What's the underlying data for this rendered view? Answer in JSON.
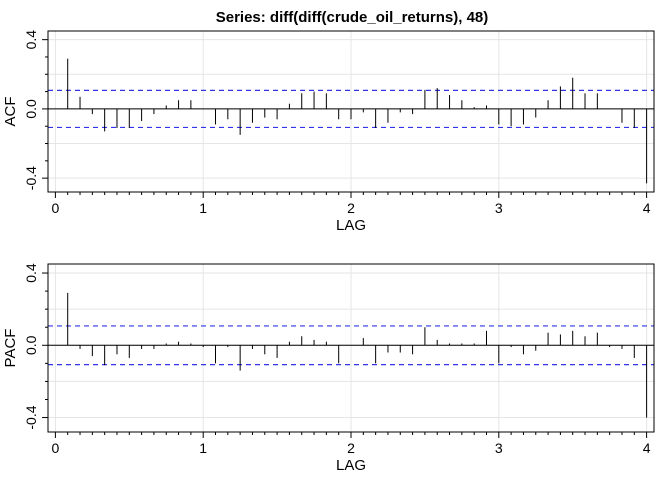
{
  "title": "Series:  diff(diff(crude_oil_returns), 48)",
  "chart_data": [
    {
      "type": "bar",
      "panel": "acf",
      "xlabel": "LAG",
      "ylabel": "ACF",
      "xlim": [
        -0.05,
        4.05
      ],
      "ylim": [
        -0.48,
        0.45
      ],
      "xticks": [
        0,
        1,
        2,
        3,
        4
      ],
      "yticks": [
        -0.4,
        0.0,
        0.4
      ],
      "ytick_labels": [
        "-0.4",
        "0.0",
        "0.4"
      ],
      "grid": true,
      "ci": [
        0.107,
        -0.107
      ],
      "lags": [
        0.0833,
        0.1667,
        0.25,
        0.3333,
        0.4167,
        0.5,
        0.5833,
        0.6667,
        0.75,
        0.8333,
        0.9167,
        1.0,
        1.0833,
        1.1667,
        1.25,
        1.3333,
        1.4167,
        1.5,
        1.5833,
        1.6667,
        1.75,
        1.8333,
        1.9167,
        2.0,
        2.0833,
        2.1667,
        2.25,
        2.3333,
        2.4167,
        2.5,
        2.5833,
        2.6667,
        2.75,
        2.8333,
        2.9167,
        3.0,
        3.0833,
        3.1667,
        3.25,
        3.3333,
        3.4167,
        3.5,
        3.5833,
        3.6667,
        3.75,
        3.8333,
        3.9167,
        4.0
      ],
      "values": [
        0.29,
        0.07,
        -0.03,
        -0.13,
        -0.11,
        -0.11,
        -0.07,
        -0.03,
        0.02,
        0.05,
        0.05,
        0.0,
        -0.09,
        -0.06,
        -0.15,
        -0.08,
        -0.05,
        -0.06,
        0.03,
        0.09,
        0.1,
        0.09,
        -0.06,
        -0.06,
        -0.02,
        -0.11,
        -0.08,
        -0.02,
        -0.03,
        0.11,
        0.12,
        0.08,
        0.05,
        0.01,
        0.02,
        -0.09,
        -0.1,
        -0.09,
        -0.05,
        0.05,
        0.13,
        0.18,
        0.09,
        0.09,
        0.0,
        -0.08,
        -0.11,
        -0.43
      ]
    },
    {
      "type": "bar",
      "panel": "pacf",
      "xlabel": "LAG",
      "ylabel": "PACF",
      "xlim": [
        -0.05,
        4.05
      ],
      "ylim": [
        -0.48,
        0.45
      ],
      "xticks": [
        0,
        1,
        2,
        3,
        4
      ],
      "yticks": [
        -0.4,
        0.0,
        0.4
      ],
      "ytick_labels": [
        "-0.4",
        "0.0",
        "0.4"
      ],
      "grid": true,
      "ci": [
        0.107,
        -0.107
      ],
      "lags": [
        0.0833,
        0.1667,
        0.25,
        0.3333,
        0.4167,
        0.5,
        0.5833,
        0.6667,
        0.75,
        0.8333,
        0.9167,
        1.0,
        1.0833,
        1.1667,
        1.25,
        1.3333,
        1.4167,
        1.5,
        1.5833,
        1.6667,
        1.75,
        1.8333,
        1.9167,
        2.0,
        2.0833,
        2.1667,
        2.25,
        2.3333,
        2.4167,
        2.5,
        2.5833,
        2.6667,
        2.75,
        2.8333,
        2.9167,
        3.0,
        3.0833,
        3.1667,
        3.25,
        3.3333,
        3.4167,
        3.5,
        3.5833,
        3.6667,
        3.75,
        3.8333,
        3.9167,
        4.0
      ],
      "values": [
        0.29,
        -0.02,
        -0.06,
        -0.11,
        -0.05,
        -0.07,
        -0.02,
        -0.02,
        0.01,
        0.02,
        0.01,
        -0.01,
        -0.1,
        -0.01,
        -0.14,
        -0.02,
        -0.05,
        -0.07,
        0.02,
        0.05,
        0.03,
        0.02,
        -0.1,
        0.0,
        0.04,
        -0.1,
        -0.04,
        -0.04,
        -0.05,
        0.1,
        0.03,
        0.01,
        0.01,
        0.01,
        0.08,
        -0.1,
        -0.01,
        -0.05,
        -0.03,
        0.07,
        0.06,
        0.08,
        0.05,
        0.07,
        -0.01,
        -0.02,
        -0.07,
        -0.4
      ]
    }
  ]
}
